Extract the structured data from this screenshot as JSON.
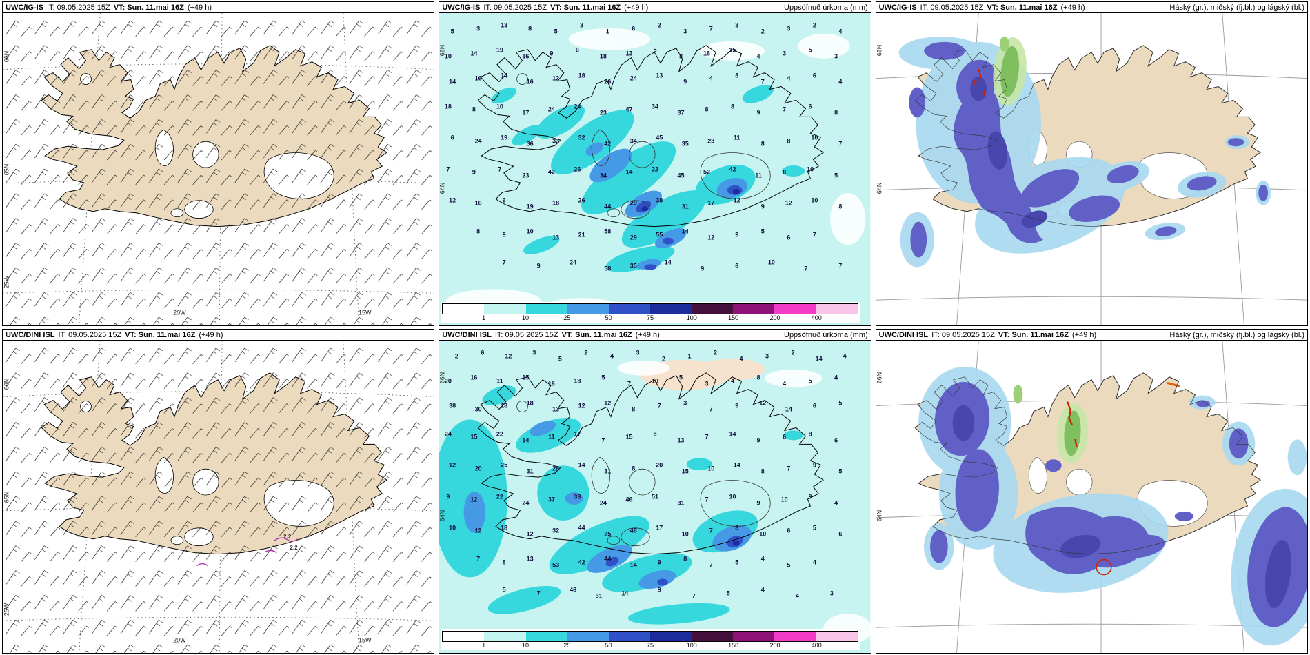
{
  "rows": [
    {
      "model": "UWC/IG-IS",
      "it": "IT: 09.05.2025 15Z",
      "vt": "VT: Sun. 11.mai 16Z",
      "lead": "(+49 h)"
    },
    {
      "model": "UWC/DINI ISL",
      "it": "IT: 09.05.2025 15Z",
      "vt": "VT: Sun. 11.mai 16Z",
      "lead": "(+49 h)"
    }
  ],
  "titles": {
    "precip": "Uppsöfnuð úrkoma (mm)",
    "cloud": "Háský (gr.), miðský (fj.bl.) og lágský (bl.)"
  },
  "colorbar": {
    "segments": [
      {
        "c": "#ffffff"
      },
      {
        "c": "#c4f4f0"
      },
      {
        "c": "#36d8de"
      },
      {
        "c": "#4699e4"
      },
      {
        "c": "#3050c8"
      },
      {
        "c": "#1c2c9c"
      },
      {
        "c": "#46103c"
      },
      {
        "c": "#8e1278"
      },
      {
        "c": "#f23cc8"
      },
      {
        "c": "#f9c6ea"
      }
    ],
    "ticks": [
      [
        10,
        0,
        "1"
      ],
      [
        20,
        0,
        "10"
      ],
      [
        30,
        0,
        "25"
      ],
      [
        40,
        0,
        "50"
      ],
      [
        50,
        0,
        "75"
      ],
      [
        60,
        0,
        "100"
      ],
      [
        70,
        0,
        "150"
      ],
      [
        80,
        0,
        "200"
      ],
      [
        90,
        0,
        "400"
      ]
    ]
  },
  "geo": {
    "wind_side": [
      [
        1,
        14,
        "66N"
      ],
      [
        1,
        50,
        "65N"
      ],
      [
        1,
        86,
        "25W"
      ]
    ],
    "wind_lon": [
      [
        41,
        96,
        "20W"
      ],
      [
        84,
        96,
        "15W"
      ]
    ],
    "map_side": [
      [
        0.8,
        12,
        "66N"
      ],
      [
        0.8,
        56,
        "64N"
      ]
    ]
  },
  "wind_labels_r2": [
    [
      66,
      63,
      "2.2"
    ],
    [
      67.5,
      66.5,
      "2.2"
    ]
  ],
  "precip_points_r1": [
    [
      3,
      6,
      "5"
    ],
    [
      9,
      5,
      "3"
    ],
    [
      15,
      4,
      "13"
    ],
    [
      21,
      5,
      "8"
    ],
    [
      27,
      6,
      "5"
    ],
    [
      33,
      4,
      "3"
    ],
    [
      39,
      6,
      "1"
    ],
    [
      45,
      5,
      "6"
    ],
    [
      51,
      4,
      "2"
    ],
    [
      57,
      6,
      "3"
    ],
    [
      63,
      5,
      "7"
    ],
    [
      69,
      4,
      "3"
    ],
    [
      75,
      6,
      "2"
    ],
    [
      81,
      5,
      "3"
    ],
    [
      87,
      4,
      "2"
    ],
    [
      93,
      6,
      "4"
    ],
    [
      2,
      14,
      "10"
    ],
    [
      8,
      13,
      "14"
    ],
    [
      14,
      12,
      "19"
    ],
    [
      20,
      14,
      "16"
    ],
    [
      26,
      13,
      "9"
    ],
    [
      32,
      12,
      "6"
    ],
    [
      38,
      14,
      "18"
    ],
    [
      44,
      13,
      "13"
    ],
    [
      50,
      12,
      "5"
    ],
    [
      56,
      14,
      "8"
    ],
    [
      62,
      13,
      "18"
    ],
    [
      68,
      12,
      "15"
    ],
    [
      74,
      14,
      "4"
    ],
    [
      80,
      13,
      "3"
    ],
    [
      86,
      12,
      "5"
    ],
    [
      92,
      14,
      "3"
    ],
    [
      3,
      22,
      "14"
    ],
    [
      9,
      21,
      "16"
    ],
    [
      15,
      20,
      "14"
    ],
    [
      21,
      22,
      "16"
    ],
    [
      27,
      21,
      "12"
    ],
    [
      33,
      20,
      "18"
    ],
    [
      39,
      22,
      "26"
    ],
    [
      45,
      21,
      "24"
    ],
    [
      51,
      20,
      "13"
    ],
    [
      57,
      22,
      "9"
    ],
    [
      63,
      21,
      "4"
    ],
    [
      69,
      20,
      "8"
    ],
    [
      75,
      22,
      "7"
    ],
    [
      81,
      21,
      "4"
    ],
    [
      87,
      20,
      "6"
    ],
    [
      93,
      22,
      "4"
    ],
    [
      2,
      30,
      "18"
    ],
    [
      8,
      31,
      "8"
    ],
    [
      14,
      30,
      "10"
    ],
    [
      20,
      32,
      "17"
    ],
    [
      26,
      31,
      "24"
    ],
    [
      32,
      30,
      "24"
    ],
    [
      38,
      32,
      "23"
    ],
    [
      44,
      31,
      "47"
    ],
    [
      50,
      30,
      "34"
    ],
    [
      56,
      32,
      "37"
    ],
    [
      62,
      31,
      "8"
    ],
    [
      68,
      30,
      "8"
    ],
    [
      74,
      32,
      "9"
    ],
    [
      80,
      31,
      "7"
    ],
    [
      86,
      30,
      "6"
    ],
    [
      92,
      32,
      "8"
    ],
    [
      3,
      40,
      "6"
    ],
    [
      9,
      41,
      "24"
    ],
    [
      15,
      40,
      "19"
    ],
    [
      21,
      42,
      "36"
    ],
    [
      27,
      41,
      "33"
    ],
    [
      33,
      40,
      "32"
    ],
    [
      39,
      42,
      "42"
    ],
    [
      45,
      41,
      "34"
    ],
    [
      51,
      40,
      "45"
    ],
    [
      57,
      42,
      "35"
    ],
    [
      63,
      41,
      "23"
    ],
    [
      69,
      40,
      "11"
    ],
    [
      75,
      42,
      "8"
    ],
    [
      81,
      41,
      "8"
    ],
    [
      87,
      40,
      "10"
    ],
    [
      93,
      42,
      "7"
    ],
    [
      2,
      50,
      "7"
    ],
    [
      8,
      51,
      "9"
    ],
    [
      14,
      50,
      "7"
    ],
    [
      20,
      52,
      "23"
    ],
    [
      26,
      51,
      "42"
    ],
    [
      32,
      50,
      "26"
    ],
    [
      38,
      52,
      "34"
    ],
    [
      44,
      51,
      "14"
    ],
    [
      50,
      50,
      "22"
    ],
    [
      56,
      52,
      "45"
    ],
    [
      62,
      51,
      "52"
    ],
    [
      68,
      50,
      "42"
    ],
    [
      74,
      52,
      "11"
    ],
    [
      80,
      51,
      "8"
    ],
    [
      86,
      50,
      "10"
    ],
    [
      92,
      52,
      "5"
    ],
    [
      3,
      60,
      "12"
    ],
    [
      9,
      61,
      "10"
    ],
    [
      15,
      60,
      "6"
    ],
    [
      21,
      62,
      "19"
    ],
    [
      27,
      61,
      "18"
    ],
    [
      33,
      60,
      "26"
    ],
    [
      39,
      62,
      "44"
    ],
    [
      45,
      61,
      "29"
    ],
    [
      51,
      60,
      "38"
    ],
    [
      57,
      62,
      "31"
    ],
    [
      63,
      61,
      "17"
    ],
    [
      69,
      60,
      "12"
    ],
    [
      75,
      62,
      "9"
    ],
    [
      81,
      61,
      "12"
    ],
    [
      87,
      60,
      "10"
    ],
    [
      93,
      62,
      "8"
    ],
    [
      9,
      70,
      "8"
    ],
    [
      15,
      71,
      "9"
    ],
    [
      21,
      70,
      "10"
    ],
    [
      27,
      72,
      "13"
    ],
    [
      33,
      71,
      "21"
    ],
    [
      39,
      70,
      "58"
    ],
    [
      45,
      72,
      "29"
    ],
    [
      51,
      71,
      "55"
    ],
    [
      57,
      70,
      "14"
    ],
    [
      63,
      72,
      "12"
    ],
    [
      69,
      71,
      "9"
    ],
    [
      75,
      70,
      "5"
    ],
    [
      81,
      72,
      "6"
    ],
    [
      87,
      71,
      "7"
    ],
    [
      15,
      80,
      "7"
    ],
    [
      23,
      81,
      "9"
    ],
    [
      31,
      80,
      "24"
    ],
    [
      39,
      82,
      "58"
    ],
    [
      45,
      81,
      "35"
    ],
    [
      53,
      80,
      "14"
    ],
    [
      61,
      82,
      "9"
    ],
    [
      69,
      81,
      "6"
    ],
    [
      77,
      80,
      "10"
    ],
    [
      85,
      82,
      "7"
    ],
    [
      93,
      81,
      "7"
    ]
  ],
  "precip_points_r2": [
    [
      4,
      5,
      "2"
    ],
    [
      10,
      4,
      "6"
    ],
    [
      16,
      5,
      "12"
    ],
    [
      22,
      4,
      "3"
    ],
    [
      28,
      6,
      "5"
    ],
    [
      34,
      4,
      "2"
    ],
    [
      40,
      5,
      "4"
    ],
    [
      46,
      4,
      "3"
    ],
    [
      52,
      6,
      "2"
    ],
    [
      58,
      5,
      "1"
    ],
    [
      64,
      4,
      "2"
    ],
    [
      70,
      6,
      "4"
    ],
    [
      76,
      5,
      "3"
    ],
    [
      82,
      4,
      "2"
    ],
    [
      88,
      6,
      "14"
    ],
    [
      94,
      5,
      "4"
    ],
    [
      2,
      13,
      "20"
    ],
    [
      8,
      12,
      "16"
    ],
    [
      14,
      13,
      "11"
    ],
    [
      20,
      12,
      "15"
    ],
    [
      26,
      14,
      "16"
    ],
    [
      32,
      13,
      "18"
    ],
    [
      38,
      12,
      "5"
    ],
    [
      44,
      14,
      "7"
    ],
    [
      50,
      13,
      "10"
    ],
    [
      56,
      12,
      "5"
    ],
    [
      62,
      14,
      "3"
    ],
    [
      68,
      13,
      "4"
    ],
    [
      74,
      12,
      "8"
    ],
    [
      80,
      14,
      "4"
    ],
    [
      86,
      13,
      "5"
    ],
    [
      92,
      12,
      "4"
    ],
    [
      3,
      21,
      "38"
    ],
    [
      9,
      22,
      "30"
    ],
    [
      15,
      21,
      "18"
    ],
    [
      21,
      20,
      "18"
    ],
    [
      27,
      22,
      "13"
    ],
    [
      33,
      21,
      "12"
    ],
    [
      39,
      20,
      "12"
    ],
    [
      45,
      22,
      "8"
    ],
    [
      51,
      21,
      "7"
    ],
    [
      57,
      20,
      "3"
    ],
    [
      63,
      22,
      "7"
    ],
    [
      69,
      21,
      "9"
    ],
    [
      75,
      20,
      "12"
    ],
    [
      81,
      22,
      "14"
    ],
    [
      87,
      21,
      "6"
    ],
    [
      93,
      20,
      "5"
    ],
    [
      2,
      30,
      "24"
    ],
    [
      8,
      31,
      "15"
    ],
    [
      14,
      30,
      "22"
    ],
    [
      20,
      32,
      "14"
    ],
    [
      26,
      31,
      "11"
    ],
    [
      32,
      30,
      "17"
    ],
    [
      38,
      32,
      "7"
    ],
    [
      44,
      31,
      "15"
    ],
    [
      50,
      30,
      "8"
    ],
    [
      56,
      32,
      "13"
    ],
    [
      62,
      31,
      "7"
    ],
    [
      68,
      30,
      "14"
    ],
    [
      74,
      32,
      "9"
    ],
    [
      80,
      31,
      "6"
    ],
    [
      86,
      30,
      "8"
    ],
    [
      92,
      32,
      "6"
    ],
    [
      3,
      40,
      "12"
    ],
    [
      9,
      41,
      "20"
    ],
    [
      15,
      40,
      "25"
    ],
    [
      21,
      42,
      "31"
    ],
    [
      27,
      41,
      "28"
    ],
    [
      33,
      40,
      "14"
    ],
    [
      39,
      42,
      "31"
    ],
    [
      45,
      41,
      "8"
    ],
    [
      51,
      40,
      "20"
    ],
    [
      57,
      42,
      "15"
    ],
    [
      63,
      41,
      "10"
    ],
    [
      69,
      40,
      "14"
    ],
    [
      75,
      42,
      "8"
    ],
    [
      81,
      41,
      "7"
    ],
    [
      87,
      40,
      "9"
    ],
    [
      93,
      42,
      "5"
    ],
    [
      2,
      50,
      "9"
    ],
    [
      8,
      51,
      "12"
    ],
    [
      14,
      50,
      "22"
    ],
    [
      20,
      52,
      "24"
    ],
    [
      26,
      51,
      "37"
    ],
    [
      32,
      50,
      "38"
    ],
    [
      38,
      52,
      "24"
    ],
    [
      44,
      51,
      "46"
    ],
    [
      50,
      50,
      "51"
    ],
    [
      56,
      52,
      "31"
    ],
    [
      62,
      51,
      "7"
    ],
    [
      68,
      50,
      "10"
    ],
    [
      74,
      52,
      "9"
    ],
    [
      80,
      51,
      "10"
    ],
    [
      86,
      50,
      "9"
    ],
    [
      92,
      52,
      "4"
    ],
    [
      3,
      60,
      "10"
    ],
    [
      9,
      61,
      "12"
    ],
    [
      15,
      60,
      "18"
    ],
    [
      21,
      62,
      "12"
    ],
    [
      27,
      61,
      "32"
    ],
    [
      33,
      60,
      "44"
    ],
    [
      39,
      62,
      "25"
    ],
    [
      45,
      61,
      "48"
    ],
    [
      51,
      60,
      "17"
    ],
    [
      57,
      62,
      "10"
    ],
    [
      63,
      61,
      "7"
    ],
    [
      69,
      60,
      "8"
    ],
    [
      75,
      62,
      "10"
    ],
    [
      81,
      61,
      "6"
    ],
    [
      87,
      60,
      "5"
    ],
    [
      93,
      62,
      "6"
    ],
    [
      9,
      70,
      "7"
    ],
    [
      15,
      71,
      "8"
    ],
    [
      21,
      70,
      "13"
    ],
    [
      27,
      72,
      "53"
    ],
    [
      33,
      71,
      "42"
    ],
    [
      39,
      70,
      "44"
    ],
    [
      45,
      72,
      "14"
    ],
    [
      51,
      71,
      "9"
    ],
    [
      57,
      70,
      "8"
    ],
    [
      63,
      72,
      "7"
    ],
    [
      69,
      71,
      "5"
    ],
    [
      75,
      70,
      "4"
    ],
    [
      81,
      72,
      "5"
    ],
    [
      87,
      71,
      "4"
    ],
    [
      15,
      80,
      "5"
    ],
    [
      23,
      81,
      "7"
    ],
    [
      31,
      80,
      "46"
    ],
    [
      37,
      82,
      "31"
    ],
    [
      43,
      81,
      "14"
    ],
    [
      51,
      80,
      "9"
    ],
    [
      59,
      82,
      "7"
    ],
    [
      67,
      81,
      "5"
    ],
    [
      75,
      80,
      "4"
    ],
    [
      83,
      82,
      "4"
    ],
    [
      91,
      81,
      "3"
    ]
  ]
}
